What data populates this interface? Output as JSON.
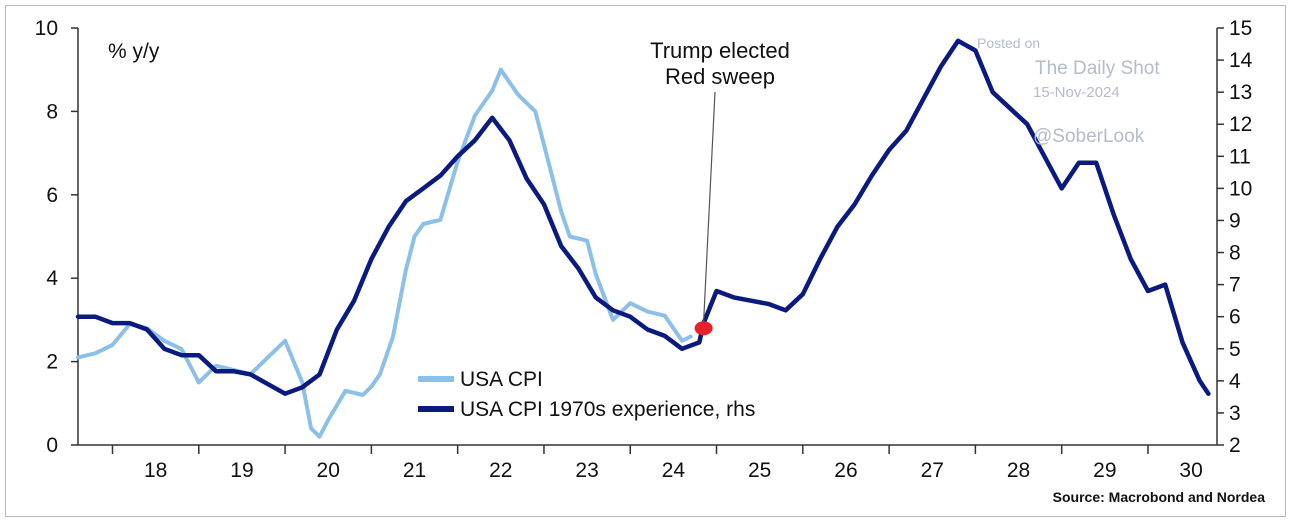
{
  "chart_data": {
    "type": "line",
    "ylabel": "% y/y",
    "source": "Source: Macrobond and Nordea",
    "x_ticks": [
      "18",
      "19",
      "20",
      "21",
      "22",
      "23",
      "24",
      "25",
      "26",
      "27",
      "28",
      "29",
      "30"
    ],
    "ylim_left": [
      0,
      10
    ],
    "ylim_right": [
      2,
      15
    ],
    "y_ticks_left": [
      "0",
      "2",
      "4",
      "6",
      "8",
      "10"
    ],
    "y_ticks_right": [
      "2",
      "3",
      "4",
      "5",
      "6",
      "7",
      "8",
      "9",
      "10",
      "11",
      "12",
      "13",
      "14",
      "15"
    ],
    "xlim": [
      2017.6,
      2030.8
    ],
    "annotation": {
      "line1": "Trump elected",
      "line2": "Red sweep",
      "x": 2024.85,
      "y": 2.8,
      "marker_color": "#e8202a"
    },
    "legend_position": "bottom-center",
    "series": [
      {
        "name": "USA CPI",
        "axis": "left",
        "color": "#8cc0e8",
        "x": [
          2017.6,
          2017.8,
          2018.0,
          2018.2,
          2018.4,
          2018.6,
          2018.8,
          2019.0,
          2019.2,
          2019.4,
          2019.6,
          2019.8,
          2020.0,
          2020.2,
          2020.3,
          2020.4,
          2020.5,
          2020.7,
          2020.9,
          2021.0,
          2021.1,
          2021.25,
          2021.4,
          2021.5,
          2021.6,
          2021.8,
          2022.0,
          2022.2,
          2022.4,
          2022.5,
          2022.7,
          2022.9,
          2023.0,
          2023.1,
          2023.2,
          2023.3,
          2023.5,
          2023.6,
          2023.8,
          2024.0,
          2024.2,
          2024.4,
          2024.6,
          2024.7
        ],
        "y": [
          2.1,
          2.2,
          2.4,
          2.9,
          2.8,
          2.5,
          2.3,
          1.5,
          1.9,
          1.8,
          1.7,
          2.1,
          2.5,
          1.5,
          0.4,
          0.2,
          0.6,
          1.3,
          1.2,
          1.4,
          1.7,
          2.6,
          4.2,
          5.0,
          5.3,
          5.4,
          6.8,
          7.9,
          8.5,
          9.0,
          8.4,
          8.0,
          7.2,
          6.4,
          5.6,
          5.0,
          4.9,
          4.1,
          3.0,
          3.4,
          3.2,
          3.1,
          2.5,
          2.6
        ]
      },
      {
        "name": "USA CPI 1970s experience, rhs",
        "axis": "right",
        "color": "#0a1a7e",
        "x": [
          2017.6,
          2017.8,
          2018.0,
          2018.2,
          2018.4,
          2018.6,
          2018.8,
          2019.0,
          2019.2,
          2019.4,
          2019.6,
          2019.8,
          2020.0,
          2020.2,
          2020.4,
          2020.6,
          2020.8,
          2021.0,
          2021.2,
          2021.4,
          2021.6,
          2021.8,
          2022.0,
          2022.2,
          2022.4,
          2022.6,
          2022.8,
          2023.0,
          2023.2,
          2023.4,
          2023.6,
          2023.8,
          2024.0,
          2024.2,
          2024.4,
          2024.6,
          2024.8,
          2024.85,
          2025.0,
          2025.2,
          2025.4,
          2025.6,
          2025.8,
          2026.0,
          2026.2,
          2026.4,
          2026.6,
          2026.8,
          2027.0,
          2027.2,
          2027.4,
          2027.6,
          2027.8,
          2028.0,
          2028.2,
          2028.4,
          2028.6,
          2028.8,
          2029.0,
          2029.2,
          2029.4,
          2029.6,
          2029.8,
          2030.0,
          2030.2,
          2030.4,
          2030.6,
          2030.7
        ],
        "y": [
          6.0,
          6.0,
          5.8,
          5.8,
          5.6,
          5.0,
          4.8,
          4.8,
          4.3,
          4.3,
          4.2,
          3.9,
          3.6,
          3.8,
          4.2,
          5.6,
          6.5,
          7.8,
          8.8,
          9.6,
          10.0,
          10.4,
          11.0,
          11.5,
          12.2,
          11.5,
          10.3,
          9.5,
          8.2,
          7.5,
          6.6,
          6.2,
          6.0,
          5.6,
          5.4,
          5.0,
          5.2,
          5.8,
          6.8,
          6.6,
          6.5,
          6.4,
          6.2,
          6.7,
          7.8,
          8.8,
          9.5,
          10.4,
          11.2,
          11.8,
          12.8,
          13.8,
          14.6,
          14.3,
          13.0,
          12.5,
          12.0,
          11.0,
          10.0,
          10.8,
          10.8,
          9.2,
          7.8,
          6.8,
          7.0,
          5.2,
          4.0,
          3.6
        ]
      }
    ]
  },
  "watermark": {
    "line1": "Posted on",
    "line2": "The Daily Shot",
    "line3": "15-Nov-2024",
    "line4": "@SoberLook"
  }
}
